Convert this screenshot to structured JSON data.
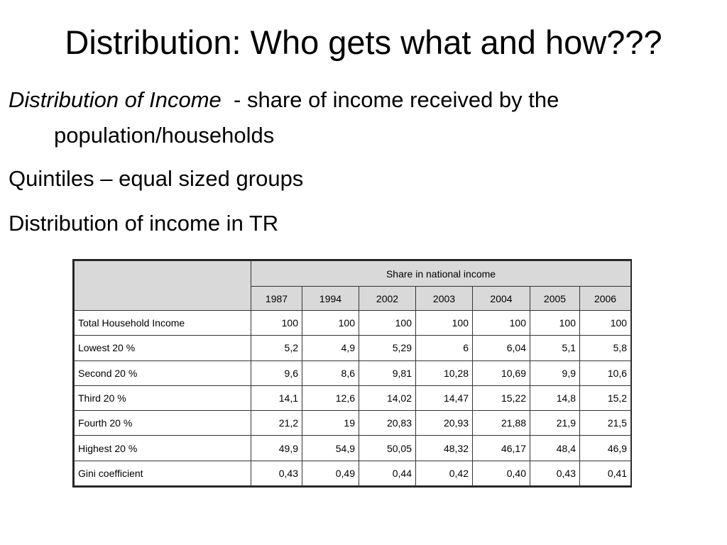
{
  "slide": {
    "title": "Distribution: Who gets what and how???",
    "line1_italic": "Distribution of Income",
    "line1_rest": "  - share of income received by the",
    "line1_cont": "population/households",
    "line2": "Quintiles – equal sized groups",
    "line3": "Distribution of income in TR"
  },
  "table": {
    "group_header": "Share in national income",
    "years": [
      "1987",
      "1994",
      "2002",
      "2003",
      "2004",
      "2005",
      "2006"
    ],
    "rows": [
      {
        "label": "Total Household Income",
        "values": [
          "100",
          "100",
          "100",
          "100",
          "100",
          "100",
          "100"
        ]
      },
      {
        "label": "Lowest 20 %",
        "values": [
          "5,2",
          "4,9",
          "5,29",
          "6",
          "6,04",
          "5,1",
          "5,8"
        ]
      },
      {
        "label": "Second 20 %",
        "values": [
          "9,6",
          "8,6",
          "9,81",
          "10,28",
          "10,69",
          "9,9",
          "10,6"
        ]
      },
      {
        "label": "Third 20 %",
        "values": [
          "14,1",
          "12,6",
          "14,02",
          "14,47",
          "15,22",
          "14,8",
          "15,2"
        ]
      },
      {
        "label": "Fourth 20 %",
        "values": [
          "21,2",
          "19",
          "20,83",
          "20,93",
          "21,88",
          "21,9",
          "21,5"
        ]
      },
      {
        "label": "Highest 20 %",
        "values": [
          "49,9",
          "54,9",
          "50,05",
          "48,32",
          "46,17",
          "48,4",
          "46,9"
        ]
      },
      {
        "label": "Gini coefficient",
        "values": [
          "0,43",
          "0,49",
          "0,44",
          "0,42",
          "0,40",
          "0,43",
          "0,41"
        ]
      }
    ]
  }
}
